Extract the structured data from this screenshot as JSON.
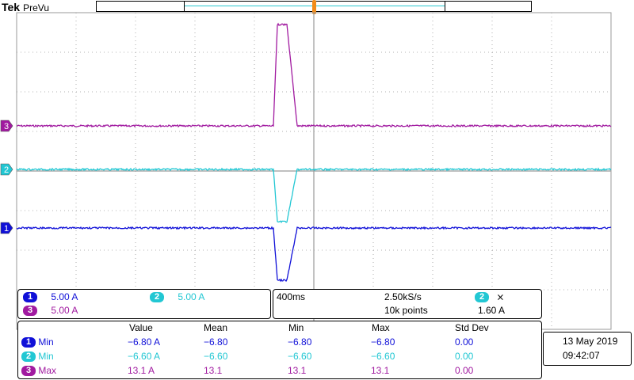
{
  "header": {
    "brand": "Tek",
    "mode": "PreVu"
  },
  "channels": [
    {
      "id": "1",
      "color": "#1010d8",
      "scale": "5.00 A"
    },
    {
      "id": "2",
      "color": "#22c7d3",
      "scale": "5.00 A"
    },
    {
      "id": "3",
      "color": "#a11aa0",
      "scale": "5.00 A"
    }
  ],
  "grid_color": "#9a9a9a",
  "timebase": {
    "scale": "400ms",
    "sample_rate": "2.50kS/s",
    "record_length": "10k points"
  },
  "trigger": {
    "source": "2",
    "slope_symbol": "⨯",
    "level": "1.60 A",
    "marker_color": "#f28c1a"
  },
  "measurements": {
    "headers": [
      "Value",
      "Mean",
      "Min",
      "Max",
      "Std Dev"
    ],
    "rows": [
      {
        "channel": "1",
        "type": "Min",
        "value": "−6.80 A",
        "mean": "−6.80",
        "min": "−6.80",
        "max": "−6.80",
        "std": "0.00"
      },
      {
        "channel": "2",
        "type": "Min",
        "value": "−6.60 A",
        "mean": "−6.60",
        "min": "−6.60",
        "max": "−6.60",
        "std": "0.00"
      },
      {
        "channel": "3",
        "type": "Max",
        "value": "13.1 A",
        "mean": "13.1",
        "min": "13.1",
        "max": "13.1",
        "std": "0.00"
      }
    ]
  },
  "datetime": {
    "date": "13 May 2019",
    "time": "09:42:07"
  }
}
